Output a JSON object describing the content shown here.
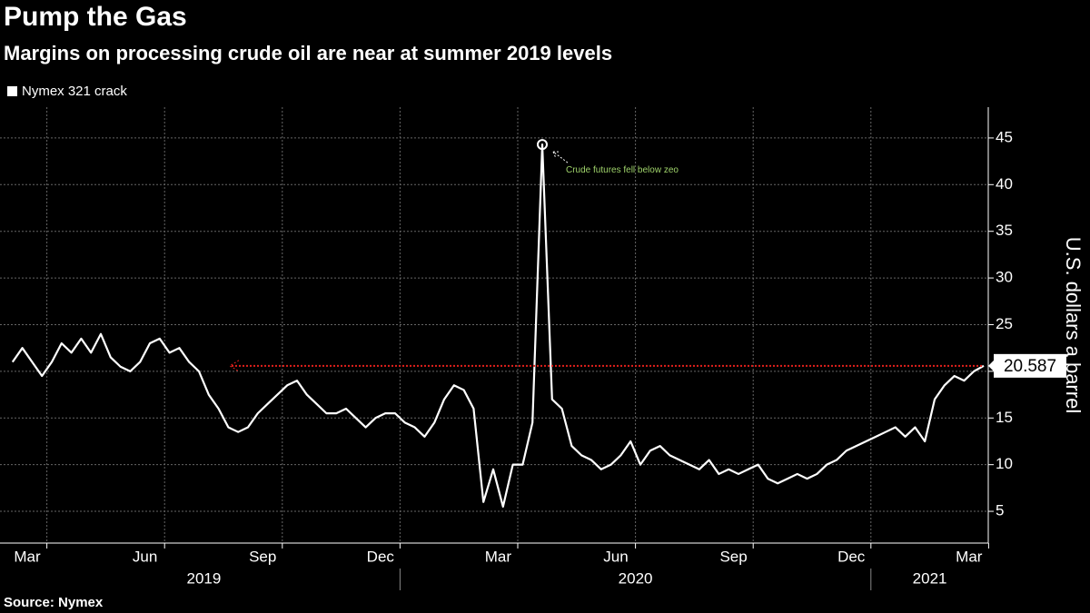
{
  "chart_data": {
    "type": "line",
    "title": "Pump the Gas",
    "subtitle": "Margins on processing crude oil are near at summer 2019 levels",
    "y_label": "U.S. dollars a barrel",
    "source": "Source: Nymex",
    "annotation": "Crude futures fell below zeo",
    "ylim": [
      1.6,
      48.3
    ],
    "yticks": [
      5,
      10,
      15,
      20,
      25,
      30,
      35,
      40,
      45
    ],
    "xticks": [
      {
        "value": "2019-03",
        "label": "Mar"
      },
      {
        "value": "2019-06",
        "label": "Jun"
      },
      {
        "value": "2019-09",
        "label": "Sep"
      },
      {
        "value": "2019-12",
        "label": "Dec"
      },
      {
        "value": "2020-03",
        "label": "Mar"
      },
      {
        "value": "2020-06",
        "label": "Jun"
      },
      {
        "value": "2020-09",
        "label": "Sep"
      },
      {
        "value": "2020-12",
        "label": "Dec"
      },
      {
        "value": "2021-03",
        "label": "Mar"
      }
    ],
    "years": [
      "2019",
      "2020",
      "2021"
    ],
    "grid": true,
    "x": [
      "2019-03",
      "2019-03",
      "2019-03",
      "2019-03",
      "2019-04",
      "2019-04",
      "2019-04",
      "2019-04",
      "2019-05",
      "2019-05",
      "2019-05",
      "2019-05",
      "2019-06",
      "2019-06",
      "2019-06",
      "2019-06",
      "2019-07",
      "2019-07",
      "2019-07",
      "2019-07",
      "2019-08",
      "2019-08",
      "2019-08",
      "2019-08",
      "2019-09",
      "2019-09",
      "2019-09",
      "2019-09",
      "2019-10",
      "2019-10",
      "2019-10",
      "2019-10",
      "2019-11",
      "2019-11",
      "2019-11",
      "2019-11",
      "2019-12",
      "2019-12",
      "2019-12",
      "2019-12",
      "2020-01",
      "2020-01",
      "2020-01",
      "2020-01",
      "2020-02",
      "2020-02",
      "2020-02",
      "2020-02",
      "2020-03",
      "2020-03",
      "2020-03",
      "2020-03",
      "2020-04",
      "2020-04",
      "2020-04",
      "2020-04",
      "2020-05",
      "2020-05",
      "2020-05",
      "2020-05",
      "2020-06",
      "2020-06",
      "2020-06",
      "2020-06",
      "2020-07",
      "2020-07",
      "2020-07",
      "2020-07",
      "2020-08",
      "2020-08",
      "2020-08",
      "2020-08",
      "2020-09",
      "2020-09",
      "2020-09",
      "2020-09",
      "2020-10",
      "2020-10",
      "2020-10",
      "2020-10",
      "2020-11",
      "2020-11",
      "2020-11",
      "2020-11",
      "2020-12",
      "2020-12",
      "2020-12",
      "2020-12",
      "2021-01",
      "2021-01",
      "2021-01",
      "2021-01",
      "2021-02",
      "2021-02",
      "2021-02",
      "2021-02",
      "2021-03",
      "2021-03",
      "2021-03",
      "2021-03"
    ],
    "series": [
      {
        "name": "Nymex 321 crack",
        "color": "#ffffff",
        "values": [
          21,
          22.5,
          21,
          19.5,
          21,
          23,
          22,
          23.5,
          22,
          24,
          21.5,
          20.5,
          20,
          21,
          23,
          23.5,
          22,
          22.5,
          21,
          20,
          17.5,
          16,
          14,
          13.5,
          14,
          15.5,
          16.5,
          17.5,
          18.5,
          19,
          17.5,
          16.5,
          15.5,
          15.5,
          16,
          15,
          14,
          15,
          15.5,
          15.5,
          14.5,
          14,
          13,
          14.5,
          17,
          18.5,
          18,
          16,
          6,
          9.5,
          5.5,
          10,
          10,
          14.5,
          44.3,
          17,
          16,
          12,
          11,
          10.5,
          9.5,
          10,
          11,
          12.5,
          10,
          11.5,
          12,
          11,
          10.5,
          10,
          9.5,
          10.5,
          9,
          9.5,
          9,
          9.5,
          10,
          8.5,
          8,
          8.5,
          9,
          8.5,
          9,
          10,
          10.5,
          11.5,
          12,
          12.5,
          13,
          13.5,
          14,
          13,
          14,
          12.5,
          17,
          18.5,
          19.5,
          19,
          20,
          20.587
        ]
      }
    ]
  }
}
